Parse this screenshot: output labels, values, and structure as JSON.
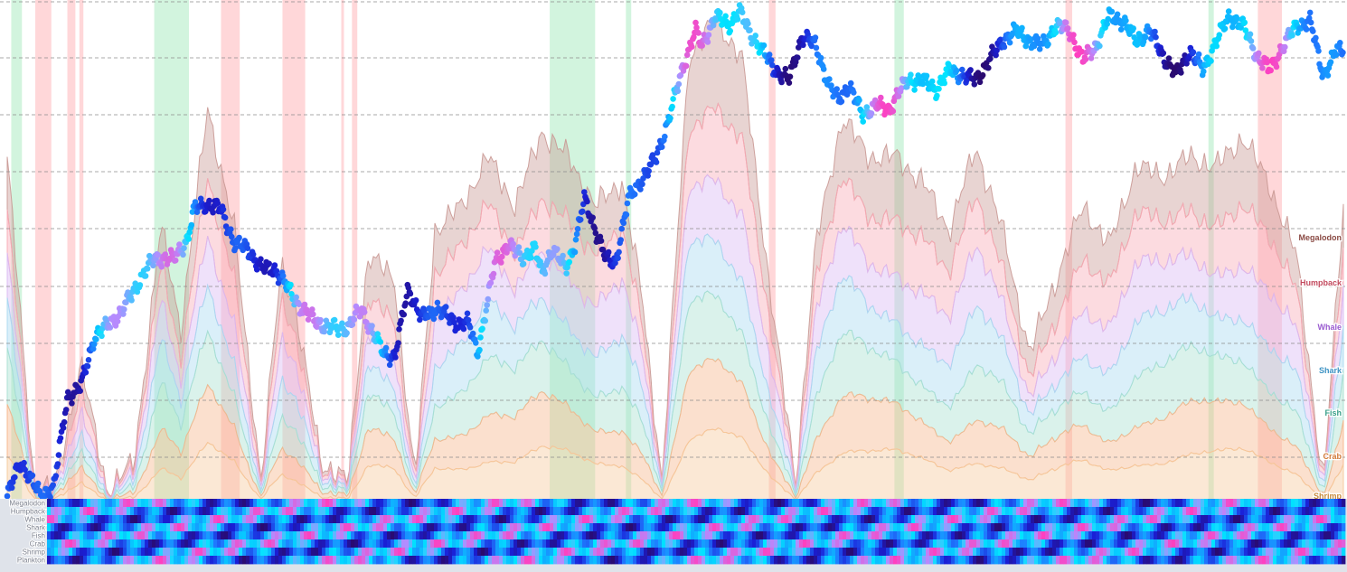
{
  "chart_data": {
    "type": "area",
    "title": "",
    "xlabel": "",
    "ylabel": "",
    "x_range": [
      0,
      1000
    ],
    "y_range_cohort": [
      0,
      100
    ],
    "y_range_price": [
      0,
      100
    ],
    "grid": "horizontal-dashed",
    "cohorts": [
      {
        "name": "Shrimp",
        "color": "#f5c89a",
        "share": 0.13
      },
      {
        "name": "Crab",
        "color": "#f6b58a",
        "share": 0.13
      },
      {
        "name": "Fish",
        "color": "#a6dfd0",
        "share": 0.14
      },
      {
        "name": "Shark",
        "color": "#a7d8f0",
        "share": 0.14
      },
      {
        "name": "Whale",
        "color": "#d9b8f2",
        "share": 0.15
      },
      {
        "name": "Humpback",
        "color": "#f7a9b4",
        "share": 0.15
      },
      {
        "name": "Megalodon",
        "color": "#c99894",
        "share": 0.16
      }
    ],
    "strip_rows": [
      "Megalodon",
      "Humpback",
      "Whale",
      "Shark",
      "Fish",
      "Crab",
      "Shrimp",
      "Plankton"
    ],
    "activity_x": [
      0,
      20,
      35,
      55,
      75,
      95,
      115,
      130,
      150,
      170,
      190,
      205,
      215,
      235,
      255,
      270,
      290,
      305,
      320,
      340,
      360,
      380,
      400,
      420,
      440,
      460,
      475,
      490,
      510,
      530,
      550,
      570,
      590,
      605,
      625,
      645,
      665,
      685,
      705,
      725,
      745,
      765,
      785,
      805,
      825,
      845,
      865,
      885,
      905,
      925,
      945,
      965,
      985,
      1000
    ],
    "activity_y": [
      70,
      4,
      2,
      28,
      2,
      8,
      56,
      35,
      80,
      55,
      4,
      48,
      40,
      8,
      4,
      50,
      45,
      4,
      55,
      60,
      70,
      60,
      75,
      70,
      60,
      65,
      42,
      4,
      90,
      98,
      90,
      45,
      4,
      52,
      78,
      70,
      70,
      65,
      55,
      72,
      55,
      30,
      45,
      60,
      52,
      68,
      66,
      70,
      68,
      74,
      64,
      50,
      3,
      60
    ],
    "price_x": [
      0,
      10,
      25,
      35,
      45,
      55,
      65,
      85,
      100,
      110,
      125,
      135,
      140,
      148,
      160,
      170,
      180,
      190,
      200,
      210,
      220,
      228,
      240,
      255,
      265,
      275,
      282,
      290,
      300,
      310,
      322,
      335,
      345,
      352,
      365,
      375,
      385,
      395,
      400,
      408,
      418,
      425,
      432,
      440,
      448,
      455,
      465,
      475,
      485,
      495,
      505,
      515,
      520,
      530,
      540,
      548,
      555,
      565,
      575,
      585,
      595,
      605,
      615,
      622,
      630,
      640,
      650,
      660,
      668,
      675,
      685,
      695,
      705,
      715,
      725,
      735,
      745,
      755,
      765,
      775,
      785,
      795,
      805,
      815,
      825,
      835,
      845,
      855,
      865,
      875,
      885,
      895,
      905,
      915,
      925,
      935,
      945,
      955,
      965,
      975,
      985,
      995
    ],
    "price_y": [
      2,
      9,
      2,
      4,
      22,
      24,
      34,
      39,
      46,
      50,
      50,
      54,
      60,
      61,
      60,
      53,
      52,
      48,
      48,
      44,
      40,
      38,
      36,
      36,
      40,
      34,
      31,
      30,
      44,
      38,
      40,
      37,
      37,
      31,
      49,
      53,
      50,
      52,
      47,
      52,
      48,
      53,
      62,
      56,
      50,
      49,
      62,
      66,
      70,
      78,
      88,
      96,
      93,
      99,
      97,
      100,
      96,
      92,
      88,
      86,
      95,
      93,
      85,
      82,
      85,
      79,
      81,
      80,
      84,
      86,
      86,
      84,
      88,
      87,
      86,
      90,
      94,
      96,
      94,
      93,
      97,
      96,
      90,
      93,
      99,
      98,
      94,
      96,
      91,
      87,
      92,
      88,
      94,
      99,
      97,
      91,
      88,
      93,
      97,
      98,
      87,
      92
    ],
    "green_bands": [
      [
        3,
        11
      ],
      [
        110,
        136
      ],
      [
        406,
        440
      ],
      [
        463,
        467
      ],
      [
        664,
        671
      ],
      [
        899,
        903
      ]
    ],
    "red_bands": [
      [
        21,
        33
      ],
      [
        45,
        51
      ],
      [
        54,
        57
      ],
      [
        160,
        174
      ],
      [
        206,
        223
      ],
      [
        250,
        252
      ],
      [
        258,
        262
      ],
      [
        570,
        575
      ],
      [
        792,
        797
      ],
      [
        936,
        954
      ]
    ],
    "colors": {
      "gradient": [
        "#ff3fbf",
        "#b48cff",
        "#00e5ff",
        "#1f7bff",
        "#1a1fd6",
        "#2a0a6e"
      ],
      "green_band": "#5fd98a",
      "red_band": "#ff7a80",
      "grid": "#8c8c8c",
      "strip_bg": "#dfe3ea"
    }
  }
}
